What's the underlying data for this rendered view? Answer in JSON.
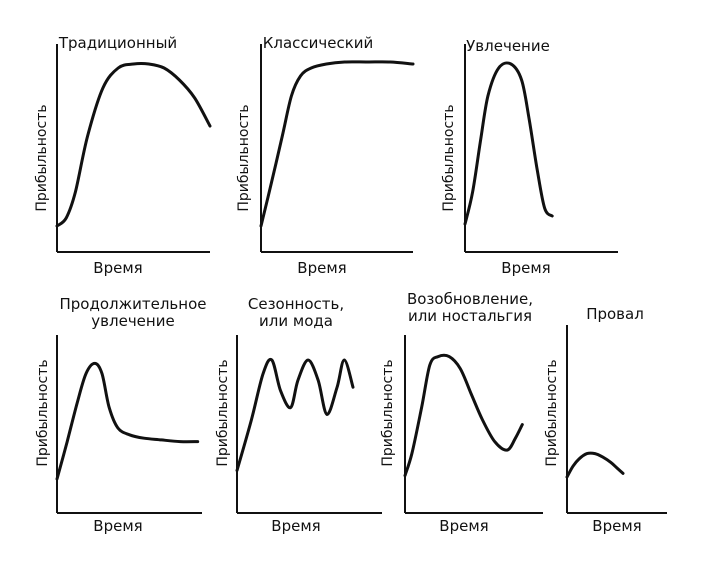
{
  "chart_data": [
    {
      "type": "line",
      "title": "Традиционный",
      "xlabel": "Время",
      "ylabel": "Прибыльность",
      "x": [
        0,
        0.06,
        0.12,
        0.2,
        0.3,
        0.4,
        0.5,
        0.6,
        0.7,
        0.8,
        0.9,
        1.0
      ],
      "y": [
        0.13,
        0.17,
        0.3,
        0.58,
        0.82,
        0.92,
        0.94,
        0.94,
        0.92,
        0.86,
        0.77,
        0.63
      ]
    },
    {
      "type": "line",
      "title": "Классический",
      "xlabel": "Время",
      "ylabel": "Прибыльность",
      "x": [
        0,
        0.07,
        0.14,
        0.2,
        0.26,
        0.33,
        0.43,
        0.55,
        0.7,
        0.85,
        1.0
      ],
      "y": [
        0.13,
        0.35,
        0.58,
        0.78,
        0.88,
        0.92,
        0.94,
        0.95,
        0.95,
        0.95,
        0.94
      ]
    },
    {
      "type": "line",
      "title": "Увлечение",
      "xlabel": "Время",
      "ylabel": "Прибыльность",
      "x": [
        0,
        0.05,
        0.1,
        0.15,
        0.22,
        0.3,
        0.37,
        0.42,
        0.47,
        0.52,
        0.57
      ],
      "y": [
        0.14,
        0.3,
        0.55,
        0.78,
        0.92,
        0.94,
        0.86,
        0.66,
        0.42,
        0.22,
        0.18
      ]
    },
    {
      "type": "line",
      "title": "Продолжительное увлечение",
      "xlabel": "Время",
      "ylabel": "Прибыльность",
      "x": [
        0,
        0.07,
        0.14,
        0.2,
        0.26,
        0.31,
        0.36,
        0.42,
        0.5,
        0.6,
        0.72,
        0.85,
        0.97
      ],
      "y": [
        0.2,
        0.42,
        0.65,
        0.82,
        0.88,
        0.82,
        0.62,
        0.5,
        0.46,
        0.44,
        0.43,
        0.42,
        0.42
      ]
    },
    {
      "type": "line",
      "title": "Сезонность, или мода",
      "xlabel": "Время",
      "ylabel": "Прибыльность",
      "x": [
        0,
        0.1,
        0.18,
        0.24,
        0.3,
        0.37,
        0.42,
        0.49,
        0.56,
        0.62,
        0.69,
        0.74,
        0.8
      ],
      "y": [
        0.25,
        0.55,
        0.82,
        0.9,
        0.72,
        0.62,
        0.78,
        0.9,
        0.78,
        0.58,
        0.74,
        0.9,
        0.74
      ]
    },
    {
      "type": "line",
      "title": "Возобновление, или ностальгия",
      "xlabel": "Время",
      "ylabel": "Прибыльность",
      "x": [
        0,
        0.05,
        0.12,
        0.18,
        0.24,
        0.32,
        0.4,
        0.48,
        0.56,
        0.65,
        0.74,
        0.8,
        0.85
      ],
      "y": [
        0.22,
        0.35,
        0.62,
        0.87,
        0.92,
        0.92,
        0.85,
        0.7,
        0.55,
        0.42,
        0.37,
        0.44,
        0.52
      ]
    },
    {
      "type": "line",
      "title": "Провал",
      "xlabel": "Время",
      "ylabel": "Прибыльность",
      "x": [
        0,
        0.06,
        0.12,
        0.2,
        0.28,
        0.36,
        0.44,
        0.5,
        0.56
      ],
      "y": [
        0.2,
        0.26,
        0.3,
        0.33,
        0.33,
        0.31,
        0.28,
        0.25,
        0.22
      ]
    }
  ]
}
